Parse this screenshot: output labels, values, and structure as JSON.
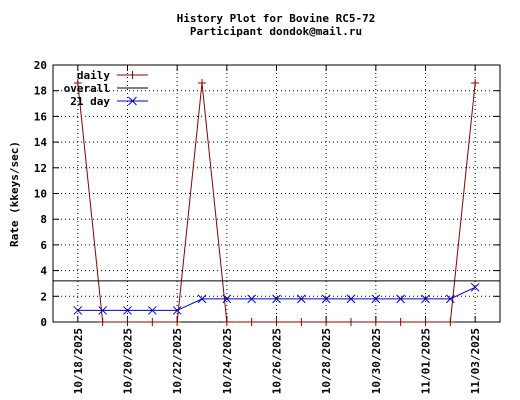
{
  "chart_data": {
    "type": "line",
    "title": "History Plot for Bovine RC5-72",
    "subtitle": "Participant dondok@mail.ru",
    "ylabel": "Rate (kkeys/sec)",
    "x": [
      "2025-10-18",
      "2025-10-19",
      "2025-10-20",
      "2025-10-21",
      "2025-10-22",
      "2025-10-23",
      "2025-10-24",
      "2025-10-25",
      "2025-10-26",
      "2025-10-27",
      "2025-10-28",
      "2025-10-29",
      "2025-10-30",
      "2025-10-31",
      "2025-11-01",
      "2025-11-02",
      "2025-11-03"
    ],
    "xlim": [
      "2025-10-17",
      "2025-11-04"
    ],
    "xticks": [
      {
        "value": "2025-10-18",
        "label": "10/18/2025"
      },
      {
        "value": "2025-10-20",
        "label": "10/20/2025"
      },
      {
        "value": "2025-10-22",
        "label": "10/22/2025"
      },
      {
        "value": "2025-10-24",
        "label": "10/24/2025"
      },
      {
        "value": "2025-10-26",
        "label": "10/26/2025"
      },
      {
        "value": "2025-10-28",
        "label": "10/28/2025"
      },
      {
        "value": "2025-10-30",
        "label": "10/30/2025"
      },
      {
        "value": "2025-11-01",
        "label": "11/01/2025"
      },
      {
        "value": "2025-11-03",
        "label": "11/03/2025"
      }
    ],
    "ylim": [
      0,
      20
    ],
    "yticks": [
      0,
      2,
      4,
      6,
      8,
      10,
      12,
      14,
      16,
      18,
      20
    ],
    "grid": true,
    "legend": "top-left",
    "series": [
      {
        "name": "daily",
        "color": "#8b0000",
        "marker": "plus",
        "values": [
          18.6,
          0,
          0,
          0,
          0,
          18.6,
          0,
          0,
          0,
          0,
          0,
          0,
          0,
          0,
          0,
          0,
          18.6
        ]
      },
      {
        "name": "overall",
        "color": "#000000",
        "value": 3.2
      },
      {
        "name": "21 day",
        "color": "#0000cc",
        "marker": "cross",
        "values": [
          0.9,
          0.9,
          0.9,
          0.9,
          0.9,
          1.8,
          1.8,
          1.8,
          1.8,
          1.8,
          1.8,
          1.8,
          1.8,
          1.8,
          1.8,
          1.8,
          2.7
        ]
      }
    ]
  }
}
